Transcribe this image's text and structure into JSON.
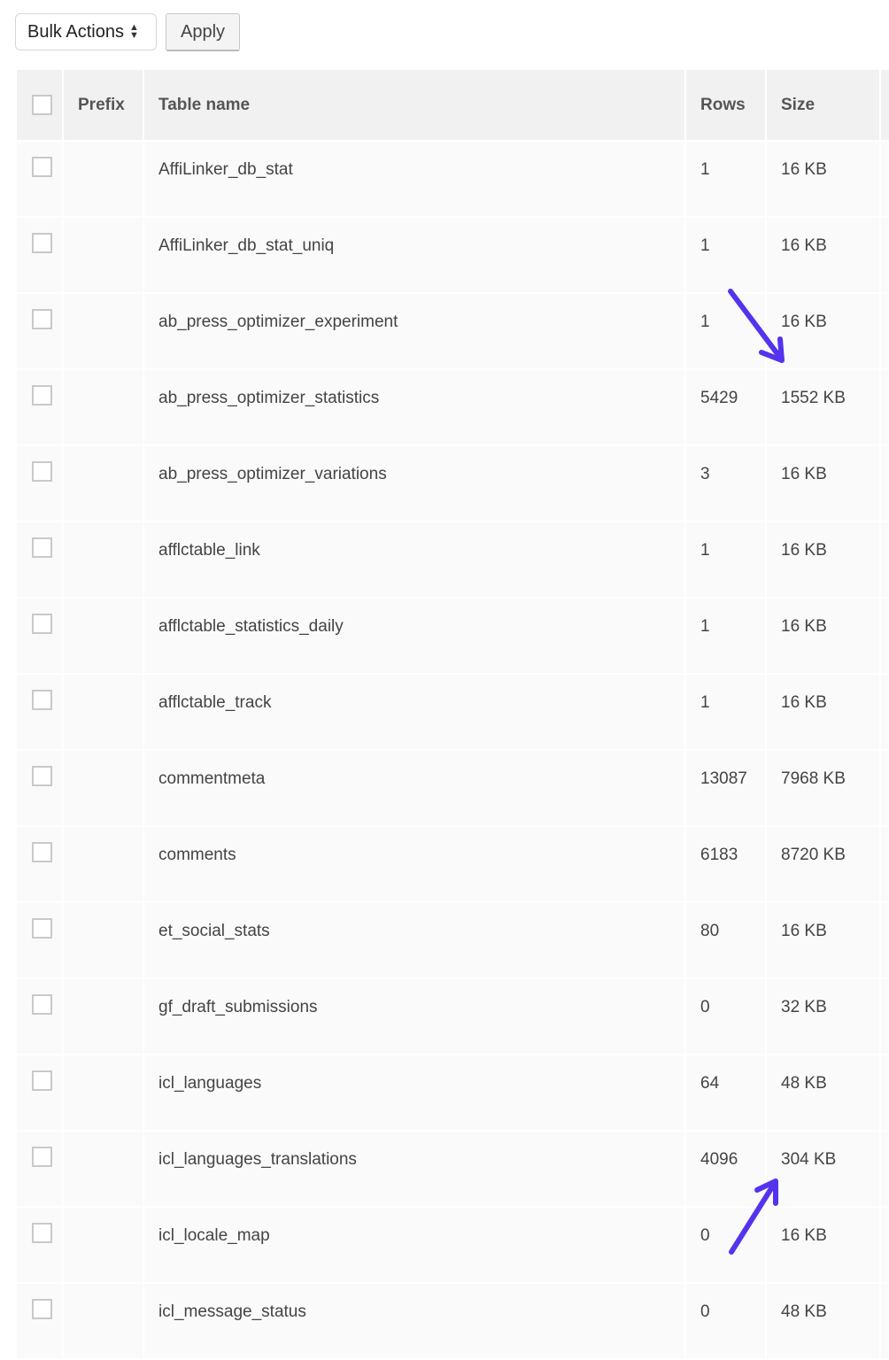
{
  "toolbar": {
    "bulk_actions_label": "Bulk Actions",
    "apply_label": "Apply"
  },
  "table": {
    "headers": {
      "prefix": "Prefix",
      "table_name": "Table name",
      "rows": "Rows",
      "size": "Size"
    },
    "rows": [
      {
        "prefix": "",
        "name": "AffiLinker_db_stat",
        "rows": "1",
        "size": "16 KB"
      },
      {
        "prefix": "",
        "name": "AffiLinker_db_stat_uniq",
        "rows": "1",
        "size": "16 KB"
      },
      {
        "prefix": "",
        "name": "ab_press_optimizer_experiment",
        "rows": "1",
        "size": "16 KB"
      },
      {
        "prefix": "",
        "name": "ab_press_optimizer_statistics",
        "rows": "5429",
        "size": "1552 KB"
      },
      {
        "prefix": "",
        "name": "ab_press_optimizer_variations",
        "rows": "3",
        "size": "16 KB"
      },
      {
        "prefix": "",
        "name": "afflctable_link",
        "rows": "1",
        "size": "16 KB"
      },
      {
        "prefix": "",
        "name": "afflctable_statistics_daily",
        "rows": "1",
        "size": "16 KB"
      },
      {
        "prefix": "",
        "name": "afflctable_track",
        "rows": "1",
        "size": "16 KB"
      },
      {
        "prefix": "",
        "name": "commentmeta",
        "rows": "13087",
        "size": "7968 KB"
      },
      {
        "prefix": "",
        "name": "comments",
        "rows": "6183",
        "size": "8720 KB"
      },
      {
        "prefix": "",
        "name": "et_social_stats",
        "rows": "80",
        "size": "16 KB"
      },
      {
        "prefix": "",
        "name": "gf_draft_submissions",
        "rows": "0",
        "size": "32 KB"
      },
      {
        "prefix": "",
        "name": "icl_languages",
        "rows": "64",
        "size": "48 KB"
      },
      {
        "prefix": "",
        "name": "icl_languages_translations",
        "rows": "4096",
        "size": "304 KB"
      },
      {
        "prefix": "",
        "name": "icl_locale_map",
        "rows": "0",
        "size": "16 KB"
      },
      {
        "prefix": "",
        "name": "icl_message_status",
        "rows": "0",
        "size": "48 KB"
      }
    ]
  },
  "annotations": {
    "arrow_color": "#5533ee"
  }
}
